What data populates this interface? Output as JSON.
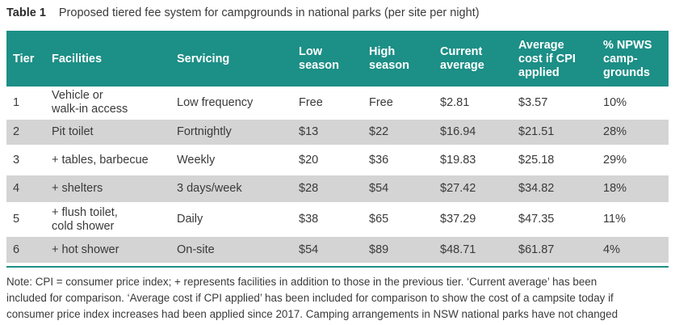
{
  "caption": {
    "label": "Table 1",
    "text": "Proposed tiered fee system for campgrounds in national parks (per site per night)"
  },
  "table": {
    "headers": [
      [
        "Tier"
      ],
      [
        "Facilities"
      ],
      [
        "Servicing"
      ],
      [
        "Low",
        "season"
      ],
      [
        "High",
        "season"
      ],
      [
        "Current",
        "average"
      ],
      [
        "Average",
        "cost if CPI",
        "applied"
      ],
      [
        "% NPWS",
        "camp-",
        "grounds"
      ]
    ],
    "rows": [
      [
        [
          "1"
        ],
        [
          "Vehicle or",
          "walk-in access"
        ],
        [
          "Low frequency"
        ],
        [
          "Free"
        ],
        [
          "Free"
        ],
        [
          "$2.81"
        ],
        [
          "$3.57"
        ],
        [
          "10%"
        ]
      ],
      [
        [
          "2"
        ],
        [
          "Pit toilet"
        ],
        [
          "Fortnightly"
        ],
        [
          "$13"
        ],
        [
          "$22"
        ],
        [
          "$16.94"
        ],
        [
          "$21.51"
        ],
        [
          "28%"
        ]
      ],
      [
        [
          "3"
        ],
        [
          "+ tables, barbecue"
        ],
        [
          "Weekly"
        ],
        [
          "$20"
        ],
        [
          "$36"
        ],
        [
          "$19.83"
        ],
        [
          "$25.18"
        ],
        [
          "29%"
        ]
      ],
      [
        [
          "4"
        ],
        [
          "+ shelters"
        ],
        [
          "3 days/week"
        ],
        [
          "$28"
        ],
        [
          "$54"
        ],
        [
          "$27.42"
        ],
        [
          "$34.82"
        ],
        [
          "18%"
        ]
      ],
      [
        [
          "5"
        ],
        [
          "+ flush toilet,",
          "cold shower"
        ],
        [
          "Daily"
        ],
        [
          "$38"
        ],
        [
          "$65"
        ],
        [
          "$37.29"
        ],
        [
          "$47.35"
        ],
        [
          "11%"
        ]
      ],
      [
        [
          "6"
        ],
        [
          "+ hot shower"
        ],
        [
          "On-site"
        ],
        [
          "$54"
        ],
        [
          "$89"
        ],
        [
          "$48.71"
        ],
        [
          "$61.87"
        ],
        [
          "4%"
        ]
      ]
    ]
  },
  "note": {
    "lines": [
      "Note: CPI = consumer price index; + represents facilities in addition to those in the previous tier. ‘Current average’ has been",
      "included for comparison. ‘Average cost if CPI applied’ has been included for comparison to show the cost of a campsite today if",
      "consumer price index increases had been applied since 2017. Camping arrangements in NSW national parks have not changed"
    ]
  },
  "colors": {
    "header_bg": "#1c8f86",
    "alt_row_bg": "#d4d4d4",
    "text": "#3a3a3a"
  }
}
